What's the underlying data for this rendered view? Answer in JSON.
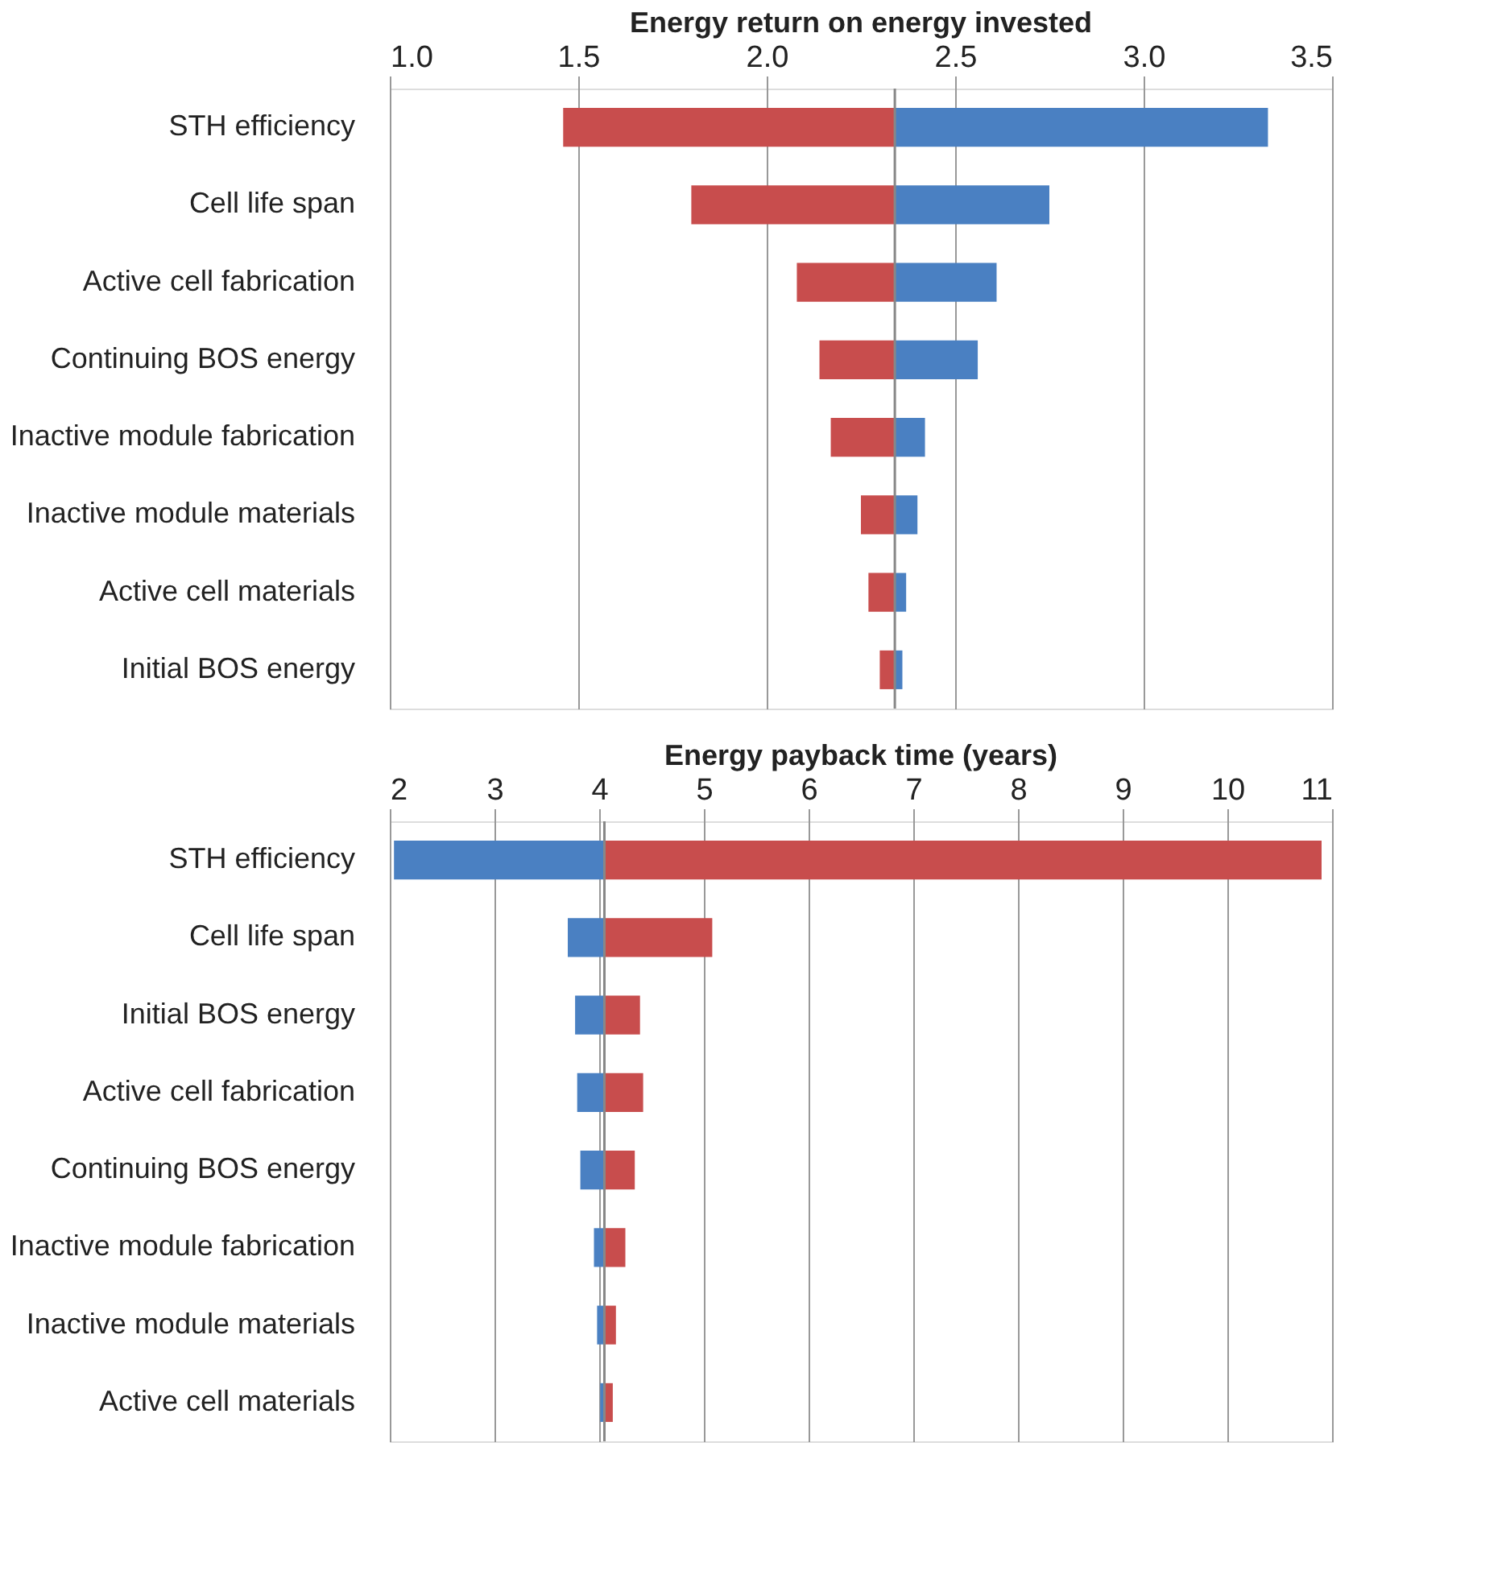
{
  "chart_data": [
    {
      "type": "bar",
      "orientation": "horizontal",
      "title": "Energy return on energy invested",
      "categories": [
        "STH efficiency",
        "Cell life span",
        "Active cell fabrication",
        "Continuing BOS energy",
        "Inactive module fabrication",
        "Inactive module materials",
        "Active cell materials",
        "Initial BOS energy"
      ],
      "series": [
        {
          "color": "#c84d4d",
          "base": [
            2.34,
            2.34,
            2.34,
            2.34,
            2.34,
            2.34,
            2.34,
            2.34
          ],
          "values": [
            -0.88,
            -0.54,
            -0.26,
            -0.2,
            -0.17,
            -0.09,
            -0.07,
            -0.04
          ]
        },
        {
          "color": "#4a80c2",
          "base": [
            2.34,
            2.34,
            2.34,
            2.34,
            2.34,
            2.34,
            2.34,
            2.34
          ],
          "values": [
            0.99,
            0.41,
            0.27,
            0.22,
            0.08,
            0.06,
            0.03,
            0.02
          ]
        }
      ],
      "xlim": [
        1.0,
        3.5
      ],
      "xticks": [
        {
          "value": 1.0,
          "label": "1.0"
        },
        1.5,
        {
          "value": 2.0,
          "label": "2.0"
        },
        2.5,
        {
          "value": 3.0,
          "label": "3.0"
        },
        3.5
      ],
      "ref_lines": [
        {
          "axis": "x",
          "value": 2.34,
          "color": "#888888"
        }
      ],
      "grid": "x"
    },
    {
      "type": "bar",
      "orientation": "horizontal",
      "title": "Energy payback time (years)",
      "categories": [
        "STH efficiency",
        "Cell life span",
        "Initial BOS energy",
        "Active cell fabrication",
        "Continuing BOS energy",
        "Inactive module fabrication",
        "Inactive module materials",
        "Active cell materials"
      ],
      "series": [
        {
          "color": "#4a80c2",
          "base": [
            4.05,
            4.05,
            4.05,
            4.05,
            4.05,
            4.05,
            4.05,
            4.05
          ],
          "values": [
            -2.01,
            -0.35,
            -0.28,
            -0.26,
            -0.23,
            -0.1,
            -0.07,
            -0.04
          ]
        },
        {
          "color": "#c84d4d",
          "base": [
            4.05,
            4.05,
            4.05,
            4.05,
            4.05,
            4.05,
            4.05,
            4.05
          ],
          "values": [
            6.85,
            1.03,
            0.34,
            0.37,
            0.29,
            0.2,
            0.11,
            0.08
          ]
        }
      ],
      "xlim": [
        2,
        11
      ],
      "xticks": [
        2,
        3,
        4,
        5,
        6,
        7,
        8,
        9,
        10,
        11
      ],
      "ref_lines": [
        {
          "axis": "x",
          "value": 4.05,
          "color": "#888888"
        }
      ],
      "grid": "x"
    }
  ]
}
